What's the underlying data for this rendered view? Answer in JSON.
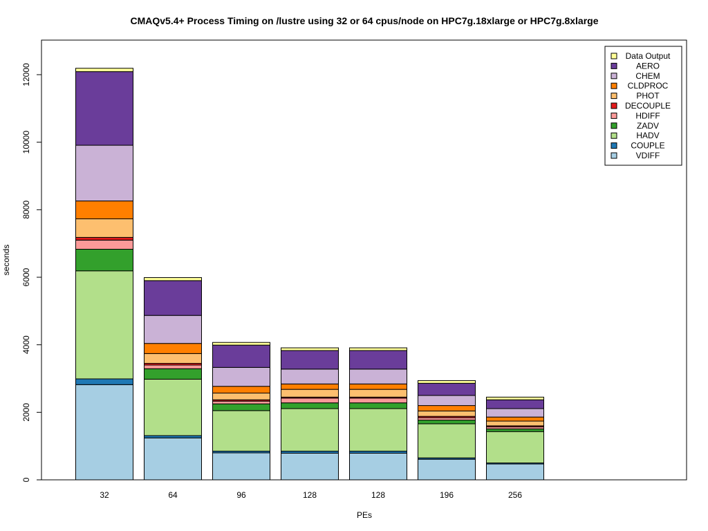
{
  "chart_data": {
    "type": "bar",
    "stacked": true,
    "title": "CMAQv5.4+ Process Timing on /lustre using 32 or 64 cpus/node on HPC7g.18xlarge or HPC7g.8xlarge",
    "xlabel": "PEs",
    "ylabel": "seconds",
    "ylim": [
      0,
      13000
    ],
    "yticks": [
      0,
      2000,
      4000,
      6000,
      8000,
      10000,
      12000
    ],
    "grid": false,
    "legend_position": "top-right",
    "categories": [
      "32",
      "64",
      "96",
      "128",
      "128",
      "196",
      "256"
    ],
    "series": [
      {
        "name": "VDIFF",
        "color": "#A6CEE3",
        "values": [
          2820,
          1240,
          800,
          790,
          790,
          610,
          470
        ]
      },
      {
        "name": "COUPLE",
        "color": "#1F78B4",
        "values": [
          170,
          70,
          50,
          60,
          60,
          40,
          30
        ]
      },
      {
        "name": "HADV",
        "color": "#B2DF8A",
        "values": [
          3200,
          1670,
          1200,
          1260,
          1260,
          1010,
          930
        ]
      },
      {
        "name": "ZADV",
        "color": "#33A02C",
        "values": [
          640,
          310,
          200,
          170,
          170,
          110,
          80
        ]
      },
      {
        "name": "HDIFF",
        "color": "#FB9A99",
        "values": [
          270,
          110,
          80,
          140,
          140,
          70,
          60
        ]
      },
      {
        "name": "DECOUPLE",
        "color": "#E31A1C",
        "values": [
          80,
          50,
          40,
          30,
          30,
          40,
          30
        ]
      },
      {
        "name": "PHOT",
        "color": "#FDBF6F",
        "values": [
          550,
          290,
          200,
          230,
          230,
          160,
          140
        ]
      },
      {
        "name": "CLDPROC",
        "color": "#FF7F00",
        "values": [
          530,
          300,
          200,
          160,
          160,
          160,
          120
        ]
      },
      {
        "name": "CHEM",
        "color": "#CAB2D6",
        "values": [
          1650,
          830,
          560,
          440,
          440,
          300,
          250
        ]
      },
      {
        "name": "AERO",
        "color": "#6A3D9A",
        "values": [
          2180,
          1030,
          660,
          550,
          550,
          360,
          260
        ]
      },
      {
        "name": "Data Output",
        "color": "#FFFF99",
        "values": [
          100,
          90,
          80,
          80,
          80,
          80,
          80
        ]
      }
    ]
  }
}
